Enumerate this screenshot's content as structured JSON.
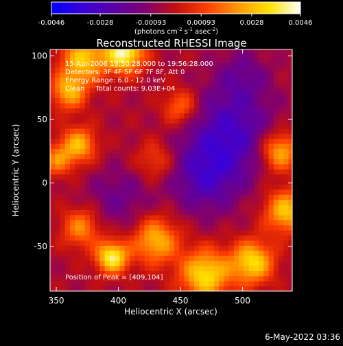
{
  "colorbar": {
    "tick_labels": [
      "-0.0046",
      "-0.0028",
      "-0.00093",
      "0.00093",
      "0.0028",
      "0.0046"
    ],
    "tick_values": [
      -0.0046,
      -0.0028,
      -0.00093,
      0.00093,
      0.0028,
      0.0046
    ],
    "range": [
      -0.0046,
      0.0046
    ],
    "unit_prefix": "(photons cm",
    "unit_exp1": "-2",
    "unit_mid": " s",
    "unit_exp2": "-1",
    "unit_mid2": " asec",
    "unit_exp3": "-2",
    "unit_suffix": ")",
    "colormap": [
      "#0000ff",
      "#3a00d8",
      "#5a00a8",
      "#800070",
      "#c21010",
      "#ff4000",
      "#ff9a00",
      "#ffe200",
      "#ffffff"
    ]
  },
  "chart_data": {
    "type": "heatmap",
    "title": "Reconstructed RHESSI Image",
    "xlabel": "Heliocentric X (arcsec)",
    "ylabel": "Heliocentric Y (arcsec)",
    "xlim": [
      345,
      540
    ],
    "ylim": [
      -85,
      105
    ],
    "x_ticks": [
      350,
      400,
      450,
      500
    ],
    "y_ticks": [
      -50,
      0,
      50,
      100
    ],
    "annotations": [
      "15-Apr-2006 19:50:28.000 to 19:56:28.000",
      "Detectors: 3F 4F 5F 6F 7F 8F, Att 0",
      "Energy Range: 6.0 - 12.0 keV",
      "Clean     Total counts: 9.03E+04"
    ],
    "peak_label": "Position of Peak = [409,104]",
    "peak": [
      409,
      104
    ],
    "sources": [
      {
        "x": 405,
        "y": 103,
        "amp": 0.0046,
        "sigma": 11
      },
      {
        "x": 372,
        "y": 98,
        "amp": 0.0034,
        "sigma": 13
      },
      {
        "x": 360,
        "y": 72,
        "amp": 0.003,
        "sigma": 10
      },
      {
        "x": 368,
        "y": 30,
        "amp": 0.0031,
        "sigma": 10
      },
      {
        "x": 350,
        "y": 18,
        "amp": 0.0022,
        "sigma": 9
      },
      {
        "x": 395,
        "y": -58,
        "amp": 0.0044,
        "sigma": 9
      },
      {
        "x": 370,
        "y": -35,
        "amp": 0.0025,
        "sigma": 11
      },
      {
        "x": 430,
        "y": -45,
        "amp": 0.0032,
        "sigma": 13
      },
      {
        "x": 470,
        "y": -72,
        "amp": 0.0039,
        "sigma": 14
      },
      {
        "x": 508,
        "y": -62,
        "amp": 0.0038,
        "sigma": 12
      },
      {
        "x": 535,
        "y": -22,
        "amp": 0.0034,
        "sigma": 12
      },
      {
        "x": 530,
        "y": 25,
        "amp": 0.0033,
        "sigma": 11
      },
      {
        "x": 450,
        "y": 60,
        "amp": 0.0022,
        "sigma": 10
      },
      {
        "x": 430,
        "y": 18,
        "amp": 0.0016,
        "sigma": 11
      },
      {
        "x": 490,
        "y": 40,
        "amp": -0.0024,
        "sigma": 24
      },
      {
        "x": 470,
        "y": 5,
        "amp": -0.0021,
        "sigma": 20
      },
      {
        "x": 500,
        "y": 85,
        "amp": -0.0012,
        "sigma": 15
      },
      {
        "x": 400,
        "y": -12,
        "amp": -0.0012,
        "sigma": 18
      }
    ],
    "background": -0.0004
  },
  "footer": {
    "timestamp": "6-May-2022 03:36"
  }
}
